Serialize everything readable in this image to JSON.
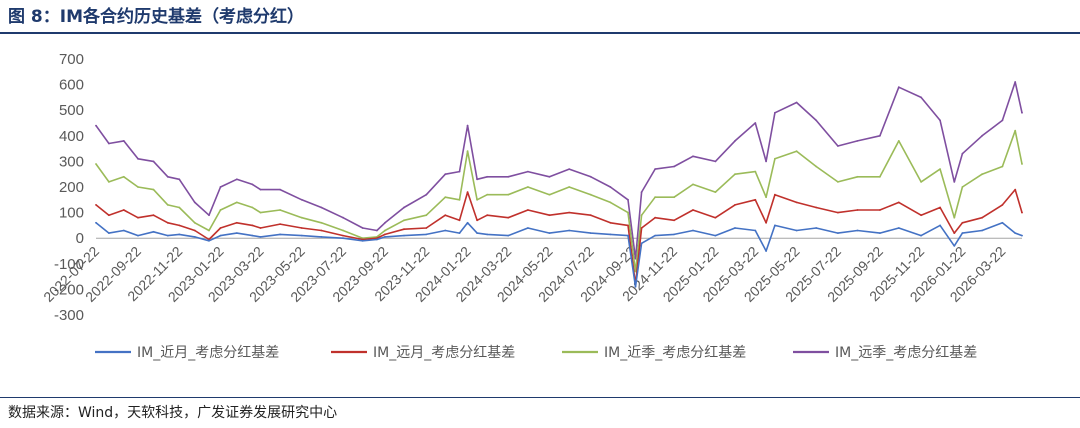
{
  "title": "图 8：IM各合约历史基差（考虑分红）",
  "source": "数据来源：Wind，天软科技，广发证券发展研究中心",
  "chart_data": {
    "type": "line",
    "title": "",
    "xlabel": "",
    "ylabel": "",
    "ylim": [
      -300,
      700
    ],
    "yticks": [
      -300,
      -200,
      -100,
      0,
      100,
      200,
      300,
      400,
      500,
      600,
      700
    ],
    "x_tick_labels": [
      "2022-07-22",
      "2022-09-22",
      "2022-11-22",
      "2023-01-22",
      "2023-03-22",
      "2023-05-22",
      "2023-07-22",
      "2023-09-22",
      "2023-11-22",
      "2024-01-22",
      "2024-03-22",
      "2024-05-22",
      "2024-07-22",
      "2024-09-22",
      "2024-11-22",
      "2025-01-22",
      "2025-03-22",
      "2025-05-22",
      "2025-07-22",
      "2025-09-22",
      "2025-11-22",
      "2026-01-22",
      "2026-03-22"
    ],
    "x_range": [
      "2022-07-22",
      "2026-04-20"
    ],
    "legend_position": "bottom",
    "grid": false,
    "series": [
      {
        "name": "IM_近月_考虑分红基差",
        "color": "#4472C4",
        "points": [
          [
            "2022-07-22",
            60
          ],
          [
            "2022-08-10",
            20
          ],
          [
            "2022-09-01",
            30
          ],
          [
            "2022-09-22",
            10
          ],
          [
            "2022-10-15",
            25
          ],
          [
            "2022-11-05",
            10
          ],
          [
            "2022-11-22",
            15
          ],
          [
            "2022-12-15",
            5
          ],
          [
            "2023-01-05",
            -10
          ],
          [
            "2023-01-22",
            10
          ],
          [
            "2023-02-15",
            20
          ],
          [
            "2023-03-10",
            10
          ],
          [
            "2023-03-22",
            5
          ],
          [
            "2023-04-20",
            15
          ],
          [
            "2023-05-22",
            10
          ],
          [
            "2023-06-20",
            5
          ],
          [
            "2023-07-22",
            0
          ],
          [
            "2023-08-20",
            -10
          ],
          [
            "2023-09-10",
            -5
          ],
          [
            "2023-09-22",
            5
          ],
          [
            "2023-10-20",
            10
          ],
          [
            "2023-11-22",
            15
          ],
          [
            "2023-12-20",
            30
          ],
          [
            "2024-01-10",
            20
          ],
          [
            "2024-01-22",
            60
          ],
          [
            "2024-02-05",
            20
          ],
          [
            "2024-02-20",
            15
          ],
          [
            "2024-03-22",
            10
          ],
          [
            "2024-04-20",
            40
          ],
          [
            "2024-05-22",
            20
          ],
          [
            "2024-06-20",
            30
          ],
          [
            "2024-07-22",
            20
          ],
          [
            "2024-08-20",
            15
          ],
          [
            "2024-09-15",
            10
          ],
          [
            "2024-09-26",
            -190
          ],
          [
            "2024-10-05",
            -20
          ],
          [
            "2024-10-25",
            10
          ],
          [
            "2024-11-22",
            15
          ],
          [
            "2024-12-20",
            30
          ],
          [
            "2025-01-22",
            10
          ],
          [
            "2025-02-20",
            40
          ],
          [
            "2025-03-22",
            30
          ],
          [
            "2025-04-07",
            -50
          ],
          [
            "2025-04-20",
            50
          ],
          [
            "2025-05-22",
            30
          ],
          [
            "2025-06-20",
            40
          ],
          [
            "2025-07-22",
            20
          ],
          [
            "2025-08-20",
            30
          ],
          [
            "2025-09-22",
            20
          ],
          [
            "2025-10-20",
            40
          ],
          [
            "2025-11-22",
            10
          ],
          [
            "2025-12-20",
            50
          ],
          [
            "2026-01-10",
            -30
          ],
          [
            "2026-01-22",
            20
          ],
          [
            "2026-02-20",
            30
          ],
          [
            "2026-03-22",
            60
          ],
          [
            "2026-04-10",
            20
          ],
          [
            "2026-04-20",
            10
          ]
        ]
      },
      {
        "name": "IM_远月_考虑分红基差",
        "color": "#C0312C",
        "points": [
          [
            "2022-07-22",
            130
          ],
          [
            "2022-08-10",
            90
          ],
          [
            "2022-09-01",
            110
          ],
          [
            "2022-09-22",
            80
          ],
          [
            "2022-10-15",
            90
          ],
          [
            "2022-11-05",
            60
          ],
          [
            "2022-11-22",
            50
          ],
          [
            "2022-12-15",
            30
          ],
          [
            "2023-01-05",
            -5
          ],
          [
            "2023-01-22",
            40
          ],
          [
            "2023-02-15",
            60
          ],
          [
            "2023-03-10",
            50
          ],
          [
            "2023-03-22",
            40
          ],
          [
            "2023-04-20",
            55
          ],
          [
            "2023-05-22",
            40
          ],
          [
            "2023-06-20",
            30
          ],
          [
            "2023-07-22",
            10
          ],
          [
            "2023-08-20",
            -5
          ],
          [
            "2023-09-10",
            0
          ],
          [
            "2023-09-22",
            15
          ],
          [
            "2023-10-20",
            35
          ],
          [
            "2023-11-22",
            40
          ],
          [
            "2023-12-20",
            90
          ],
          [
            "2024-01-10",
            70
          ],
          [
            "2024-01-22",
            180
          ],
          [
            "2024-02-05",
            70
          ],
          [
            "2024-02-20",
            90
          ],
          [
            "2024-03-22",
            80
          ],
          [
            "2024-04-20",
            110
          ],
          [
            "2024-05-22",
            90
          ],
          [
            "2024-06-20",
            100
          ],
          [
            "2024-07-22",
            90
          ],
          [
            "2024-08-20",
            60
          ],
          [
            "2024-09-15",
            50
          ],
          [
            "2024-09-26",
            -180
          ],
          [
            "2024-10-05",
            40
          ],
          [
            "2024-10-25",
            80
          ],
          [
            "2024-11-22",
            70
          ],
          [
            "2024-12-20",
            110
          ],
          [
            "2025-01-22",
            80
          ],
          [
            "2025-02-20",
            130
          ],
          [
            "2025-03-22",
            150
          ],
          [
            "2025-04-07",
            60
          ],
          [
            "2025-04-20",
            170
          ],
          [
            "2025-05-22",
            140
          ],
          [
            "2025-06-20",
            120
          ],
          [
            "2025-07-22",
            100
          ],
          [
            "2025-08-20",
            110
          ],
          [
            "2025-09-22",
            110
          ],
          [
            "2025-10-20",
            140
          ],
          [
            "2025-11-22",
            90
          ],
          [
            "2025-12-20",
            120
          ],
          [
            "2026-01-10",
            20
          ],
          [
            "2026-01-22",
            60
          ],
          [
            "2026-02-20",
            80
          ],
          [
            "2026-03-22",
            130
          ],
          [
            "2026-04-10",
            190
          ],
          [
            "2026-04-20",
            100
          ]
        ]
      },
      {
        "name": "IM_近季_考虑分红基差",
        "color": "#9BBB59",
        "points": [
          [
            "2022-07-22",
            290
          ],
          [
            "2022-08-10",
            220
          ],
          [
            "2022-09-01",
            240
          ],
          [
            "2022-09-22",
            200
          ],
          [
            "2022-10-15",
            190
          ],
          [
            "2022-11-05",
            130
          ],
          [
            "2022-11-22",
            120
          ],
          [
            "2022-12-15",
            60
          ],
          [
            "2023-01-05",
            30
          ],
          [
            "2023-01-22",
            110
          ],
          [
            "2023-02-15",
            140
          ],
          [
            "2023-03-10",
            120
          ],
          [
            "2023-03-22",
            100
          ],
          [
            "2023-04-20",
            110
          ],
          [
            "2023-05-22",
            80
          ],
          [
            "2023-06-20",
            60
          ],
          [
            "2023-07-22",
            30
          ],
          [
            "2023-08-20",
            0
          ],
          [
            "2023-09-10",
            5
          ],
          [
            "2023-09-22",
            30
          ],
          [
            "2023-10-20",
            70
          ],
          [
            "2023-11-22",
            90
          ],
          [
            "2023-12-20",
            160
          ],
          [
            "2024-01-10",
            150
          ],
          [
            "2024-01-22",
            340
          ],
          [
            "2024-02-05",
            150
          ],
          [
            "2024-02-20",
            170
          ],
          [
            "2024-03-22",
            170
          ],
          [
            "2024-04-20",
            200
          ],
          [
            "2024-05-22",
            170
          ],
          [
            "2024-06-20",
            200
          ],
          [
            "2024-07-22",
            170
          ],
          [
            "2024-08-20",
            140
          ],
          [
            "2024-09-15",
            100
          ],
          [
            "2024-09-26",
            -130
          ],
          [
            "2024-10-05",
            90
          ],
          [
            "2024-10-25",
            160
          ],
          [
            "2024-11-22",
            160
          ],
          [
            "2024-12-20",
            210
          ],
          [
            "2025-01-22",
            180
          ],
          [
            "2025-02-20",
            250
          ],
          [
            "2025-03-22",
            260
          ],
          [
            "2025-04-07",
            160
          ],
          [
            "2025-04-20",
            310
          ],
          [
            "2025-05-22",
            340
          ],
          [
            "2025-06-20",
            280
          ],
          [
            "2025-07-22",
            220
          ],
          [
            "2025-08-20",
            240
          ],
          [
            "2025-09-22",
            240
          ],
          [
            "2025-10-20",
            380
          ],
          [
            "2025-11-22",
            220
          ],
          [
            "2025-12-20",
            270
          ],
          [
            "2026-01-10",
            80
          ],
          [
            "2026-01-22",
            200
          ],
          [
            "2026-02-20",
            250
          ],
          [
            "2026-03-22",
            280
          ],
          [
            "2026-04-10",
            420
          ],
          [
            "2026-04-20",
            290
          ]
        ]
      },
      {
        "name": "IM_远季_考虑分红基差",
        "color": "#7F4FA0",
        "points": [
          [
            "2022-07-22",
            440
          ],
          [
            "2022-08-10",
            370
          ],
          [
            "2022-09-01",
            380
          ],
          [
            "2022-09-22",
            310
          ],
          [
            "2022-10-15",
            300
          ],
          [
            "2022-11-05",
            240
          ],
          [
            "2022-11-22",
            230
          ],
          [
            "2022-12-15",
            140
          ],
          [
            "2023-01-05",
            90
          ],
          [
            "2023-01-22",
            200
          ],
          [
            "2023-02-15",
            230
          ],
          [
            "2023-03-10",
            210
          ],
          [
            "2023-03-22",
            190
          ],
          [
            "2023-04-20",
            190
          ],
          [
            "2023-05-22",
            150
          ],
          [
            "2023-06-20",
            120
          ],
          [
            "2023-07-22",
            80
          ],
          [
            "2023-08-20",
            40
          ],
          [
            "2023-09-10",
            30
          ],
          [
            "2023-09-22",
            60
          ],
          [
            "2023-10-20",
            120
          ],
          [
            "2023-11-22",
            170
          ],
          [
            "2023-12-20",
            250
          ],
          [
            "2024-01-10",
            260
          ],
          [
            "2024-01-22",
            440
          ],
          [
            "2024-02-05",
            230
          ],
          [
            "2024-02-20",
            240
          ],
          [
            "2024-03-22",
            240
          ],
          [
            "2024-04-20",
            260
          ],
          [
            "2024-05-22",
            240
          ],
          [
            "2024-06-20",
            270
          ],
          [
            "2024-07-22",
            240
          ],
          [
            "2024-08-20",
            200
          ],
          [
            "2024-09-15",
            150
          ],
          [
            "2024-09-26",
            -80
          ],
          [
            "2024-10-05",
            180
          ],
          [
            "2024-10-25",
            270
          ],
          [
            "2024-11-22",
            280
          ],
          [
            "2024-12-20",
            320
          ],
          [
            "2025-01-22",
            300
          ],
          [
            "2025-02-20",
            380
          ],
          [
            "2025-03-22",
            450
          ],
          [
            "2025-04-07",
            300
          ],
          [
            "2025-04-20",
            490
          ],
          [
            "2025-05-22",
            530
          ],
          [
            "2025-06-20",
            460
          ],
          [
            "2025-07-22",
            360
          ],
          [
            "2025-08-20",
            380
          ],
          [
            "2025-09-22",
            400
          ],
          [
            "2025-10-20",
            590
          ],
          [
            "2025-11-22",
            550
          ],
          [
            "2025-12-20",
            460
          ],
          [
            "2026-01-10",
            220
          ],
          [
            "2026-01-22",
            330
          ],
          [
            "2026-02-20",
            400
          ],
          [
            "2026-03-22",
            460
          ],
          [
            "2026-04-10",
            610
          ],
          [
            "2026-04-20",
            490
          ]
        ]
      }
    ]
  }
}
